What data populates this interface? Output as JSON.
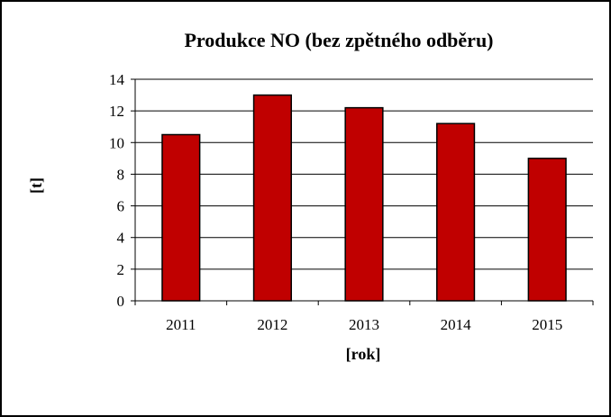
{
  "chart_data": {
    "type": "bar",
    "title": "Produkce NO (bez zpětného odběru)",
    "xlabel": "[rok]",
    "ylabel": "[t]",
    "categories": [
      "2011",
      "2012",
      "2013",
      "2014",
      "2015"
    ],
    "values": [
      10.5,
      13.0,
      12.2,
      11.2,
      9.0
    ],
    "ylim": [
      0,
      14
    ],
    "yticks": [
      "0",
      "2",
      "4",
      "6",
      "8",
      "10",
      "12",
      "14"
    ],
    "grid": true,
    "legend": "none",
    "bar_color": "#C00000"
  }
}
